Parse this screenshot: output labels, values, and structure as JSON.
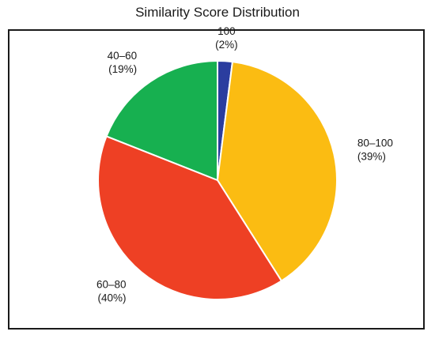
{
  "chart_data": {
    "type": "pie",
    "title": "Similarity Score Distribution",
    "slices": [
      {
        "label": "100",
        "percent_label": "(2%)",
        "value": 2,
        "color": "#2b3d9f"
      },
      {
        "label": "80–100",
        "percent_label": "(39%)",
        "value": 39,
        "color": "#fbbc12"
      },
      {
        "label": "60–80",
        "percent_label": "(40%)",
        "value": 40,
        "color": "#ee4024"
      },
      {
        "label": "40–60",
        "percent_label": "(19%)",
        "value": 19,
        "color": "#17b050"
      }
    ],
    "start_angle_deg": 0,
    "direction": "clockwise",
    "legend": "none"
  }
}
